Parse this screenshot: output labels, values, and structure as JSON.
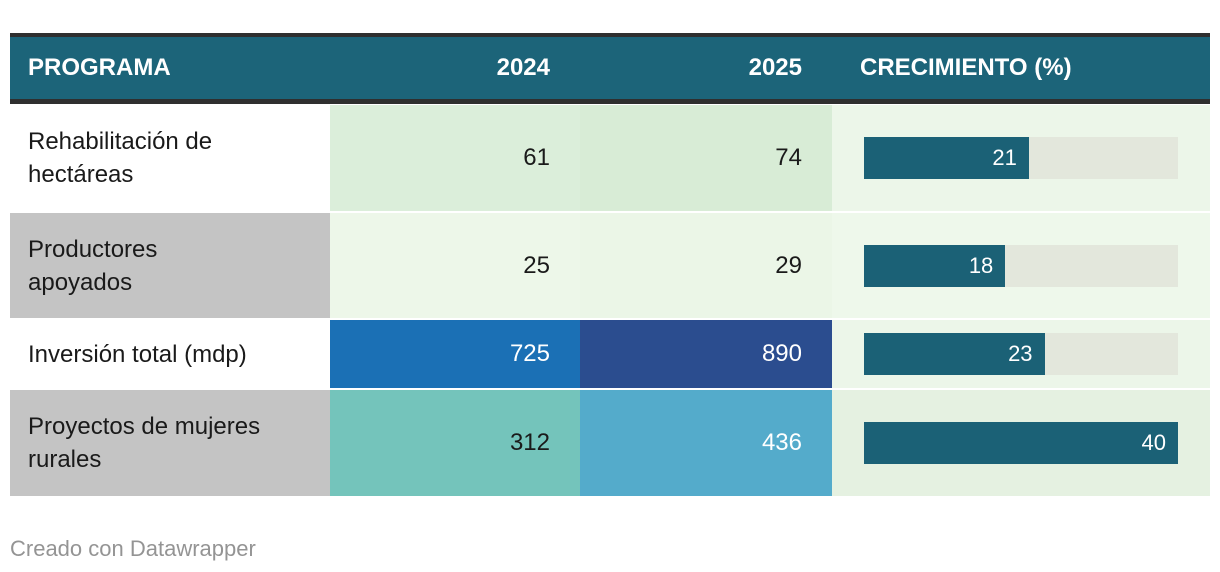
{
  "table": {
    "header": {
      "program": "PROGRAMA",
      "col_2024": "2024",
      "col_2025": "2025",
      "growth": "CRECIMIENTO (%)",
      "bg": "#1C6479",
      "text_color": "#FFFFFF",
      "border_color": "#2F2F2F"
    },
    "bar": {
      "color": "#1B6176",
      "track_color": "#E3E7DC",
      "label_color": "#FFFFFF",
      "scale_max": 40
    },
    "rows": [
      {
        "program_lines": [
          "Rehabilitación de",
          "hectáreas"
        ],
        "label_bg": "#FFFFFF",
        "label_fg": "#1A1A1A",
        "v2024": "61",
        "v2024_bg": "#DBEEDA",
        "v2024_fg": "#1A1A1A",
        "v2025": "74",
        "v2025_bg": "#D8ECD6",
        "v2025_fg": "#1A1A1A",
        "growth_value": 21,
        "growth_label": "21",
        "growth_bg": "#ECF6E9"
      },
      {
        "program_lines": [
          "Productores",
          "apoyados"
        ],
        "label_bg": "#C4C4C4",
        "label_fg": "#1A1A1A",
        "v2024": "25",
        "v2024_bg": "#EDF7E9",
        "v2024_fg": "#1A1A1A",
        "v2025": "29",
        "v2025_bg": "#EBF6E7",
        "v2025_fg": "#1A1A1A",
        "growth_value": 18,
        "growth_label": "18",
        "growth_bg": "#EEF8EB"
      },
      {
        "program_lines": [
          "Inversión total (mdp)"
        ],
        "label_bg": "#FFFFFF",
        "label_fg": "#1A1A1A",
        "v2024": "725",
        "v2024_bg": "#1B70B5",
        "v2024_fg": "#FFFFFF",
        "v2025": "890",
        "v2025_bg": "#2B4D8F",
        "v2025_fg": "#FFFFFF",
        "growth_value": 23,
        "growth_label": "23",
        "growth_bg": "#ECF6E9"
      },
      {
        "program_lines": [
          "Proyectos de mujeres",
          "rurales"
        ],
        "label_bg": "#C4C4C4",
        "label_fg": "#1A1A1A",
        "v2024": "312",
        "v2024_bg": "#74C4BB",
        "v2024_fg": "#1A1A1A",
        "v2025": "436",
        "v2025_bg": "#54ABCB",
        "v2025_fg": "#FFFFFF",
        "growth_value": 40,
        "growth_label": "40",
        "growth_bg": "#E5F1E1"
      }
    ]
  },
  "footer": {
    "text": "Creado con Datawrapper",
    "color": "#949494"
  },
  "chart_data": {
    "type": "table",
    "title": "",
    "columns": [
      "PROGRAMA",
      "2024",
      "2025",
      "CRECIMIENTO (%)"
    ],
    "rows": [
      {
        "programa": "Rehabilitación de hectáreas",
        "y2024": 61,
        "y2025": 74,
        "crecimiento_pct": 21
      },
      {
        "programa": "Productores apoyados",
        "y2024": 25,
        "y2025": 29,
        "crecimiento_pct": 18
      },
      {
        "programa": "Inversión total (mdp)",
        "y2024": 725,
        "y2025": 890,
        "crecimiento_pct": 23
      },
      {
        "programa": "Proyectos de mujeres rurales",
        "y2024": 312,
        "y2025": 436,
        "crecimiento_pct": 40
      }
    ],
    "bar_column": "crecimiento_pct",
    "bar_scale": [
      0,
      40
    ],
    "heatmap_columns": [
      "y2024",
      "y2025"
    ],
    "legend_position": "none",
    "grid": false
  }
}
